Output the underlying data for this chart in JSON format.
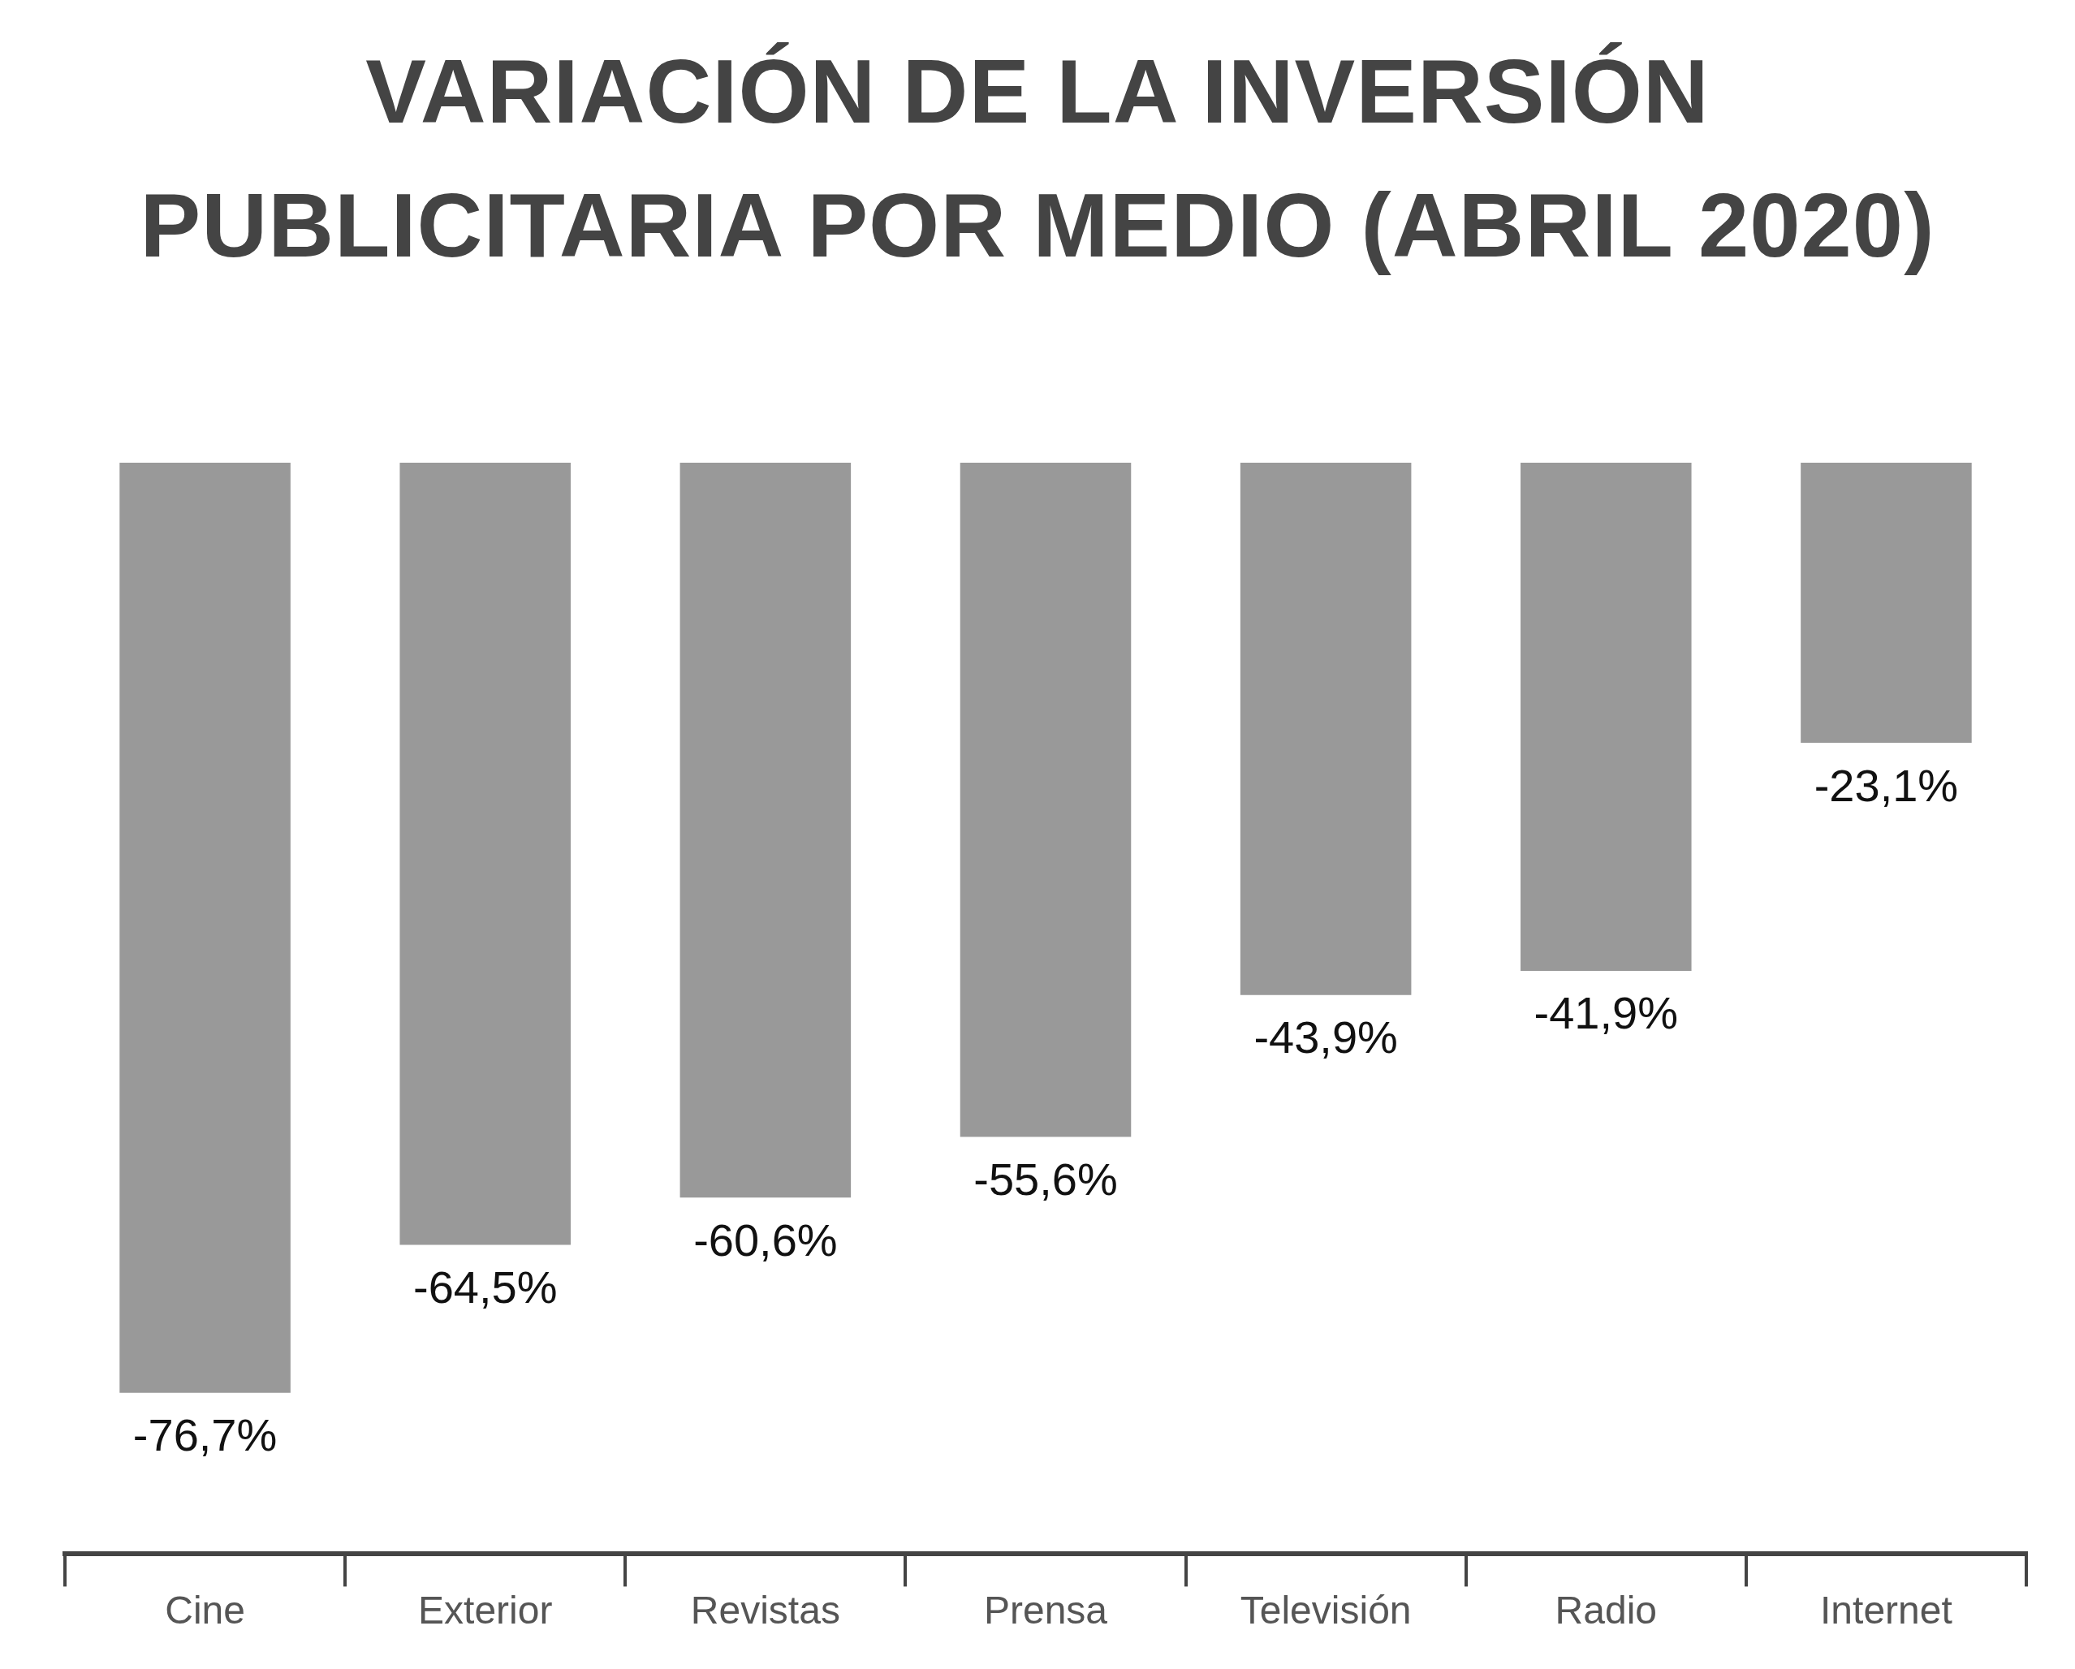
{
  "chart_data": {
    "type": "bar",
    "title": "VARIACIÓN DE LA INVERSIÓN PUBLICITARIA POR MEDIO (ABRIL 2020)",
    "categories": [
      "Cine",
      "Exterior",
      "Revistas",
      "Prensa",
      "Televisión",
      "Radio",
      "Internet"
    ],
    "values": [
      -76.7,
      -64.5,
      -60.6,
      -55.6,
      -43.9,
      -41.9,
      -23.1
    ],
    "value_labels": [
      "-76,7%",
      "-64,5%",
      "-60,6%",
      "-55,6%",
      "-43,9%",
      "-41,9%",
      "-23,1%"
    ],
    "color": "#999999",
    "tick_labels": "x",
    "legend": false
  }
}
